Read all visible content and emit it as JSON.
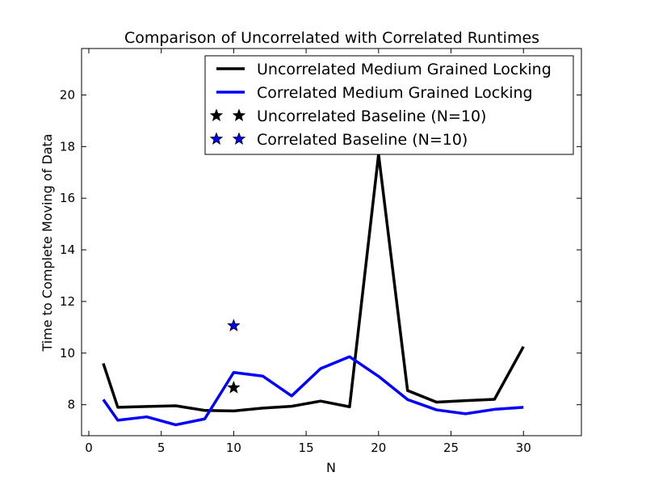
{
  "chart_data": {
    "type": "line",
    "title": "Comparison of Uncorrelated with Correlated Runtimes",
    "xlabel": "N",
    "ylabel": "Time to Complete Moving of Data",
    "xlim": [
      -0.5,
      34
    ],
    "ylim": [
      6.8,
      21.8
    ],
    "x_ticks": [
      0,
      5,
      10,
      15,
      20,
      25,
      30
    ],
    "y_ticks": [
      8,
      10,
      12,
      14,
      16,
      18,
      20
    ],
    "grid": false,
    "legend_position": "top-right",
    "series": [
      {
        "name": "Uncorrelated Medium Grained Locking",
        "kind": "line",
        "color": "#000000",
        "x": [
          1,
          2,
          4,
          6,
          8,
          10,
          12,
          14,
          16,
          18,
          20,
          22,
          24,
          26,
          28,
          30
        ],
        "y": [
          9.6,
          7.9,
          7.93,
          7.96,
          7.78,
          7.76,
          7.87,
          7.94,
          8.14,
          7.92,
          17.7,
          8.55,
          8.1,
          8.16,
          8.21,
          10.25
        ]
      },
      {
        "name": "Correlated Medium Grained Locking",
        "kind": "line",
        "color": "#0000ff",
        "x": [
          1,
          2,
          4,
          6,
          8,
          10,
          12,
          14,
          16,
          18,
          20,
          22,
          24,
          26,
          28,
          30
        ],
        "y": [
          8.2,
          7.4,
          7.53,
          7.22,
          7.45,
          9.25,
          9.11,
          8.34,
          9.4,
          9.86,
          9.1,
          8.2,
          7.8,
          7.65,
          7.82,
          7.9
        ]
      },
      {
        "name": "Uncorrelated Baseline (N=10)",
        "kind": "marker",
        "marker": "star",
        "color": "#000000",
        "x": [
          10
        ],
        "y": [
          8.66
        ]
      },
      {
        "name": "Correlated Baseline (N=10)",
        "kind": "marker",
        "marker": "star",
        "color": "#0000ff",
        "x": [
          10
        ],
        "y": [
          11.06
        ]
      }
    ]
  }
}
